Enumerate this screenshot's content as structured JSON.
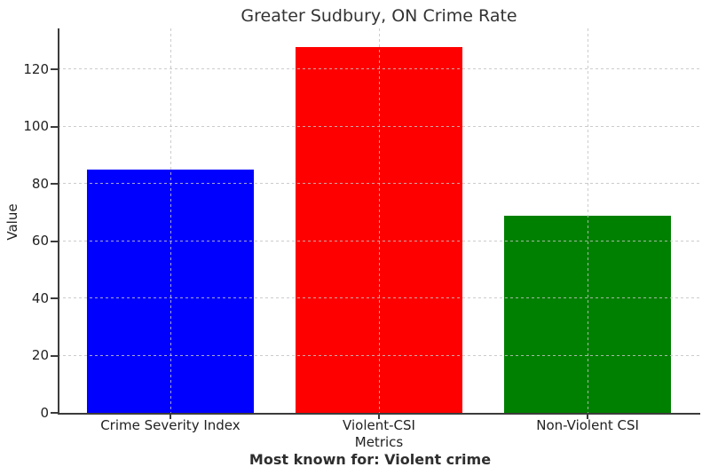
{
  "chart_data": {
    "type": "bar",
    "title": "Greater Sudbury, ON Crime Rate",
    "categories": [
      "Crime Severity Index",
      "Violent-CSI",
      "Non-Violent CSI"
    ],
    "values": [
      85,
      128,
      69
    ],
    "bar_colors": [
      "#0000ff",
      "#ff0000",
      "#008000"
    ],
    "xlabel": "Metrics",
    "ylabel": "Value",
    "footnote": "Most known for: Violent crime",
    "ylim": [
      0,
      134.4
    ],
    "yticks": [
      0,
      20,
      40,
      60,
      80,
      100,
      120
    ],
    "grid": {
      "style": "dashed",
      "color": "#c8c8c8",
      "axes": "both",
      "drawn_above_bars": true
    },
    "legend_position": "none"
  },
  "style_colors": {
    "background": "#ffffff",
    "spine": "#3c3c3c",
    "text": "#222222"
  }
}
